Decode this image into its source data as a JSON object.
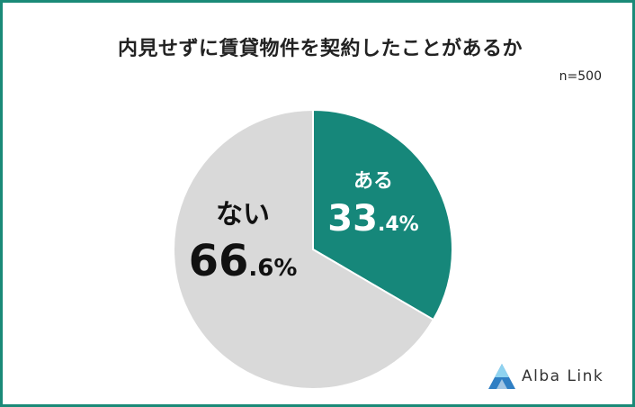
{
  "title": "内見せずに賃貸物件を契約したことがあるか",
  "sample_size": "n=500",
  "brand": {
    "name": "Alba Link",
    "logo_icon": "mountain-logo-icon"
  },
  "colors": {
    "frame": "#1a8a78",
    "yes": "#16877a",
    "no": "#d9d9d9",
    "yes_text": "#ffffff",
    "no_text": "#111111"
  },
  "chart_data": {
    "type": "pie",
    "title": "内見せずに賃貸物件を契約したことがあるか",
    "sample_size": "n=500",
    "legend": "none",
    "slices": [
      {
        "label": "ある",
        "value": 33.4,
        "value_main": "33",
        "value_sub": ".4%",
        "color": "#16877a"
      },
      {
        "label": "ない",
        "value": 66.6,
        "value_main": "66",
        "value_sub": ".6%",
        "color": "#d9d9d9"
      }
    ]
  }
}
